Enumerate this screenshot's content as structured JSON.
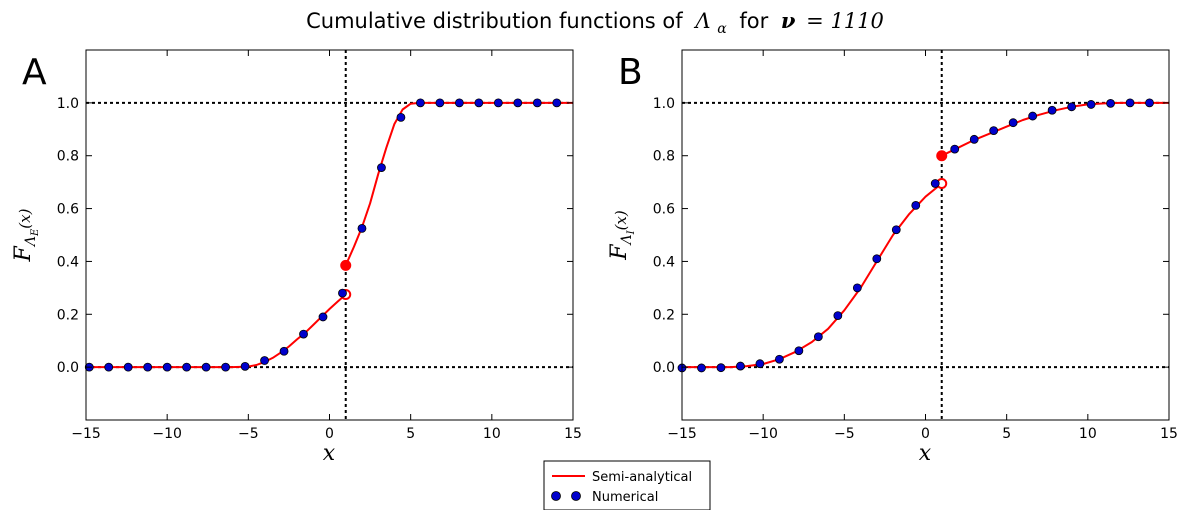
{
  "figure": {
    "title_text": "Cumulative distribution functions of",
    "title_symbol": "Λ",
    "title_symbol_sub": "α",
    "title_for": "for",
    "title_nu": "ν",
    "title_eq": "= 1110"
  },
  "legend": {
    "entries": [
      "Semi-analytical",
      "Numerical"
    ]
  },
  "colors": {
    "curve": "#ff0000",
    "marker_fill": "#0000cc",
    "marker_edge": "#000000",
    "reference_line": "#000000"
  },
  "chart_data": [
    {
      "type": "line",
      "panel_label": "A",
      "xlabel": "x",
      "ylabel_main": "F",
      "ylabel_sub": "Λ",
      "ylabel_subsub": "E",
      "ylabel_arg": "(x)",
      "xlim": [
        -15,
        15
      ],
      "ylim": [
        -0.2,
        1.2
      ],
      "xticks": [
        -15,
        -10,
        -5,
        0,
        5,
        10,
        15
      ],
      "yticks": [
        0.0,
        0.2,
        0.4,
        0.6,
        0.8,
        1.0
      ],
      "xtick_labels": [
        "−15",
        "−10",
        "−5",
        "0",
        "5",
        "10",
        "15"
      ],
      "ytick_labels": [
        "0.0",
        "0.2",
        "0.4",
        "0.6",
        "0.8",
        "1.0"
      ],
      "hlines": [
        0.0,
        1.0
      ],
      "vline": 1.0,
      "jump": {
        "x": 1.0,
        "open_y": 0.275,
        "filled_y": 0.385
      },
      "series": [
        {
          "name": "Semi-analytical",
          "style": "line",
          "x": [
            -15,
            -10,
            -6,
            -5,
            -4.5,
            -4,
            -3.5,
            -3,
            -2.5,
            -2,
            -1.5,
            -1,
            -0.5,
            0,
            0.5,
            1.0
          ],
          "y": [
            0,
            0,
            0,
            0.002,
            0.008,
            0.02,
            0.035,
            0.055,
            0.078,
            0.105,
            0.13,
            0.16,
            0.19,
            0.22,
            0.248,
            0.275
          ]
        },
        {
          "name": "Semi-analytical",
          "style": "line",
          "x": [
            1.0,
            1.5,
            2.0,
            2.5,
            3.0,
            3.5,
            4.0,
            4.5,
            5.0,
            5.5,
            10,
            15
          ],
          "y": [
            0.385,
            0.455,
            0.53,
            0.62,
            0.73,
            0.83,
            0.92,
            0.975,
            0.997,
            1.0,
            1.0,
            1.0
          ]
        },
        {
          "name": "Numerical",
          "style": "markers",
          "x": [
            -14.8,
            -13.6,
            -12.4,
            -11.2,
            -10.0,
            -8.8,
            -7.6,
            -6.4,
            -5.2,
            -4.0,
            -2.8,
            -1.6,
            -0.4,
            0.8,
            2.0,
            3.2,
            4.4,
            5.6,
            6.8,
            8.0,
            9.2,
            10.4,
            11.6,
            12.8,
            14.0
          ],
          "y": [
            0,
            0,
            0,
            0,
            0,
            0,
            0,
            0,
            0.003,
            0.025,
            0.06,
            0.125,
            0.19,
            0.28,
            0.525,
            0.755,
            0.945,
            1.0,
            1.0,
            1.0,
            1.0,
            1.0,
            1.0,
            1.0,
            1.0
          ]
        }
      ]
    },
    {
      "type": "line",
      "panel_label": "B",
      "xlabel": "x",
      "ylabel_main": "F",
      "ylabel_sub": "Λ",
      "ylabel_subsub": "I",
      "ylabel_arg": "(x)",
      "xlim": [
        -15,
        15
      ],
      "ylim": [
        -0.2,
        1.2
      ],
      "xticks": [
        -15,
        -10,
        -5,
        0,
        5,
        10,
        15
      ],
      "yticks": [
        0.0,
        0.2,
        0.4,
        0.6,
        0.8,
        1.0
      ],
      "xtick_labels": [
        "−15",
        "−10",
        "−5",
        "0",
        "5",
        "10",
        "15"
      ],
      "ytick_labels": [
        "0.0",
        "0.2",
        "0.4",
        "0.6",
        "0.8",
        "1.0"
      ],
      "hlines": [
        0.0,
        1.0
      ],
      "vline": 1.0,
      "jump": {
        "x": 1.0,
        "open_y": 0.695,
        "filled_y": 0.8
      },
      "series": [
        {
          "name": "Semi-analytical",
          "style": "line",
          "x": [
            -15,
            -12,
            -11,
            -10,
            -9,
            -8,
            -7,
            -6,
            -5,
            -4,
            -3,
            -2,
            -1,
            0,
            1.0
          ],
          "y": [
            0,
            0,
            0.004,
            0.012,
            0.03,
            0.058,
            0.095,
            0.145,
            0.215,
            0.3,
            0.4,
            0.5,
            0.58,
            0.645,
            0.695
          ]
        },
        {
          "name": "Semi-analytical",
          "style": "line",
          "x": [
            1.0,
            2,
            3,
            4,
            5,
            6,
            7,
            8,
            9,
            10,
            11,
            12,
            13,
            15
          ],
          "y": [
            0.8,
            0.83,
            0.86,
            0.885,
            0.91,
            0.935,
            0.955,
            0.972,
            0.985,
            0.994,
            0.998,
            1.0,
            1.0,
            1.0
          ]
        },
        {
          "name": "Numerical",
          "style": "markers",
          "x": [
            -15.0,
            -13.8,
            -12.6,
            -11.4,
            -10.2,
            -9.0,
            -7.8,
            -6.6,
            -5.4,
            -4.2,
            -3.0,
            -1.8,
            -0.6,
            0.6,
            1.8,
            3.0,
            4.2,
            5.4,
            6.6,
            7.8,
            9.0,
            10.2,
            11.4,
            12.6,
            13.8
          ],
          "y": [
            -0.003,
            -0.003,
            -0.002,
            0.004,
            0.013,
            0.03,
            0.062,
            0.115,
            0.195,
            0.3,
            0.41,
            0.52,
            0.612,
            0.695,
            0.825,
            0.862,
            0.895,
            0.925,
            0.95,
            0.972,
            0.985,
            0.994,
            0.998,
            1.0,
            1.0
          ]
        }
      ]
    }
  ]
}
